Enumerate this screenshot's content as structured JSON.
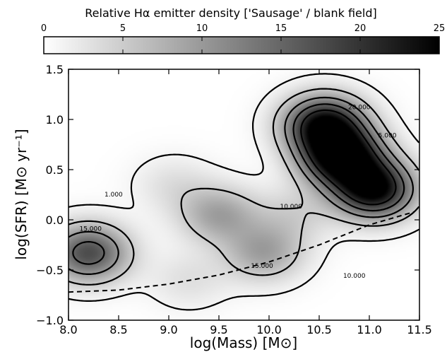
{
  "chart_data": {
    "type": "heatmap",
    "colorbar": {
      "title": "Relative Hα emitter density ['Sausage' / blank field]",
      "range": [
        0,
        25
      ],
      "ticks": [
        "0",
        "5",
        "10",
        "15",
        "20",
        "25"
      ],
      "colors": [
        "#ffffff",
        "#000000"
      ]
    },
    "xlabel": "log(Mass) [M⊙]",
    "ylabel": "log(SFR) [M⊙ yr⁻¹]",
    "xlim": [
      8.0,
      11.5
    ],
    "ylim": [
      -1.0,
      1.5
    ],
    "x_ticks": [
      "8.0",
      "8.5",
      "9.0",
      "9.5",
      "10.0",
      "10.5",
      "11.0",
      "11.5"
    ],
    "y_ticks": [
      "−1.0",
      "−0.5",
      "0.0",
      "0.5",
      "1.0",
      "1.5"
    ],
    "density_peaks": [
      {
        "x": 10.73,
        "y": 0.62,
        "value": 27
      },
      {
        "x": 10.55,
        "y": 0.95,
        "value": 24
      },
      {
        "x": 11.05,
        "y": 0.3,
        "value": 25
      },
      {
        "x": 9.5,
        "y": 0.05,
        "value": 9
      },
      {
        "x": 9.95,
        "y": -0.33,
        "value": 9
      },
      {
        "x": 10.25,
        "y": 0.05,
        "value": 4
      },
      {
        "x": 8.2,
        "y": -0.33,
        "value": 17.5
      },
      {
        "x": 9.05,
        "y": 0.35,
        "value": 3
      },
      {
        "x": 9.2,
        "y": -0.6,
        "value": 3
      }
    ],
    "contour_levels": [
      1,
      5,
      10,
      15,
      20
    ],
    "contour_labels": [
      {
        "text": "1.000",
        "x": 8.45,
        "y": 0.26
      },
      {
        "text": "15.000",
        "x": 8.22,
        "y": -0.08
      },
      {
        "text": "10.000",
        "x": 10.22,
        "y": 0.14
      },
      {
        "text": "15.000",
        "x": 9.93,
        "y": -0.45
      },
      {
        "text": "20.000",
        "x": 10.9,
        "y": 1.13
      },
      {
        "text": "5.000",
        "x": 11.18,
        "y": 0.85
      },
      {
        "text": "10.000",
        "x": 10.85,
        "y": -0.55
      }
    ],
    "main_sequence": {
      "style": "dashed",
      "x": [
        8.0,
        8.5,
        9.0,
        9.5,
        10.0,
        10.5,
        11.0,
        11.45
      ],
      "y": [
        -0.72,
        -0.7,
        -0.64,
        -0.55,
        -0.42,
        -0.25,
        -0.05,
        0.08
      ]
    }
  }
}
